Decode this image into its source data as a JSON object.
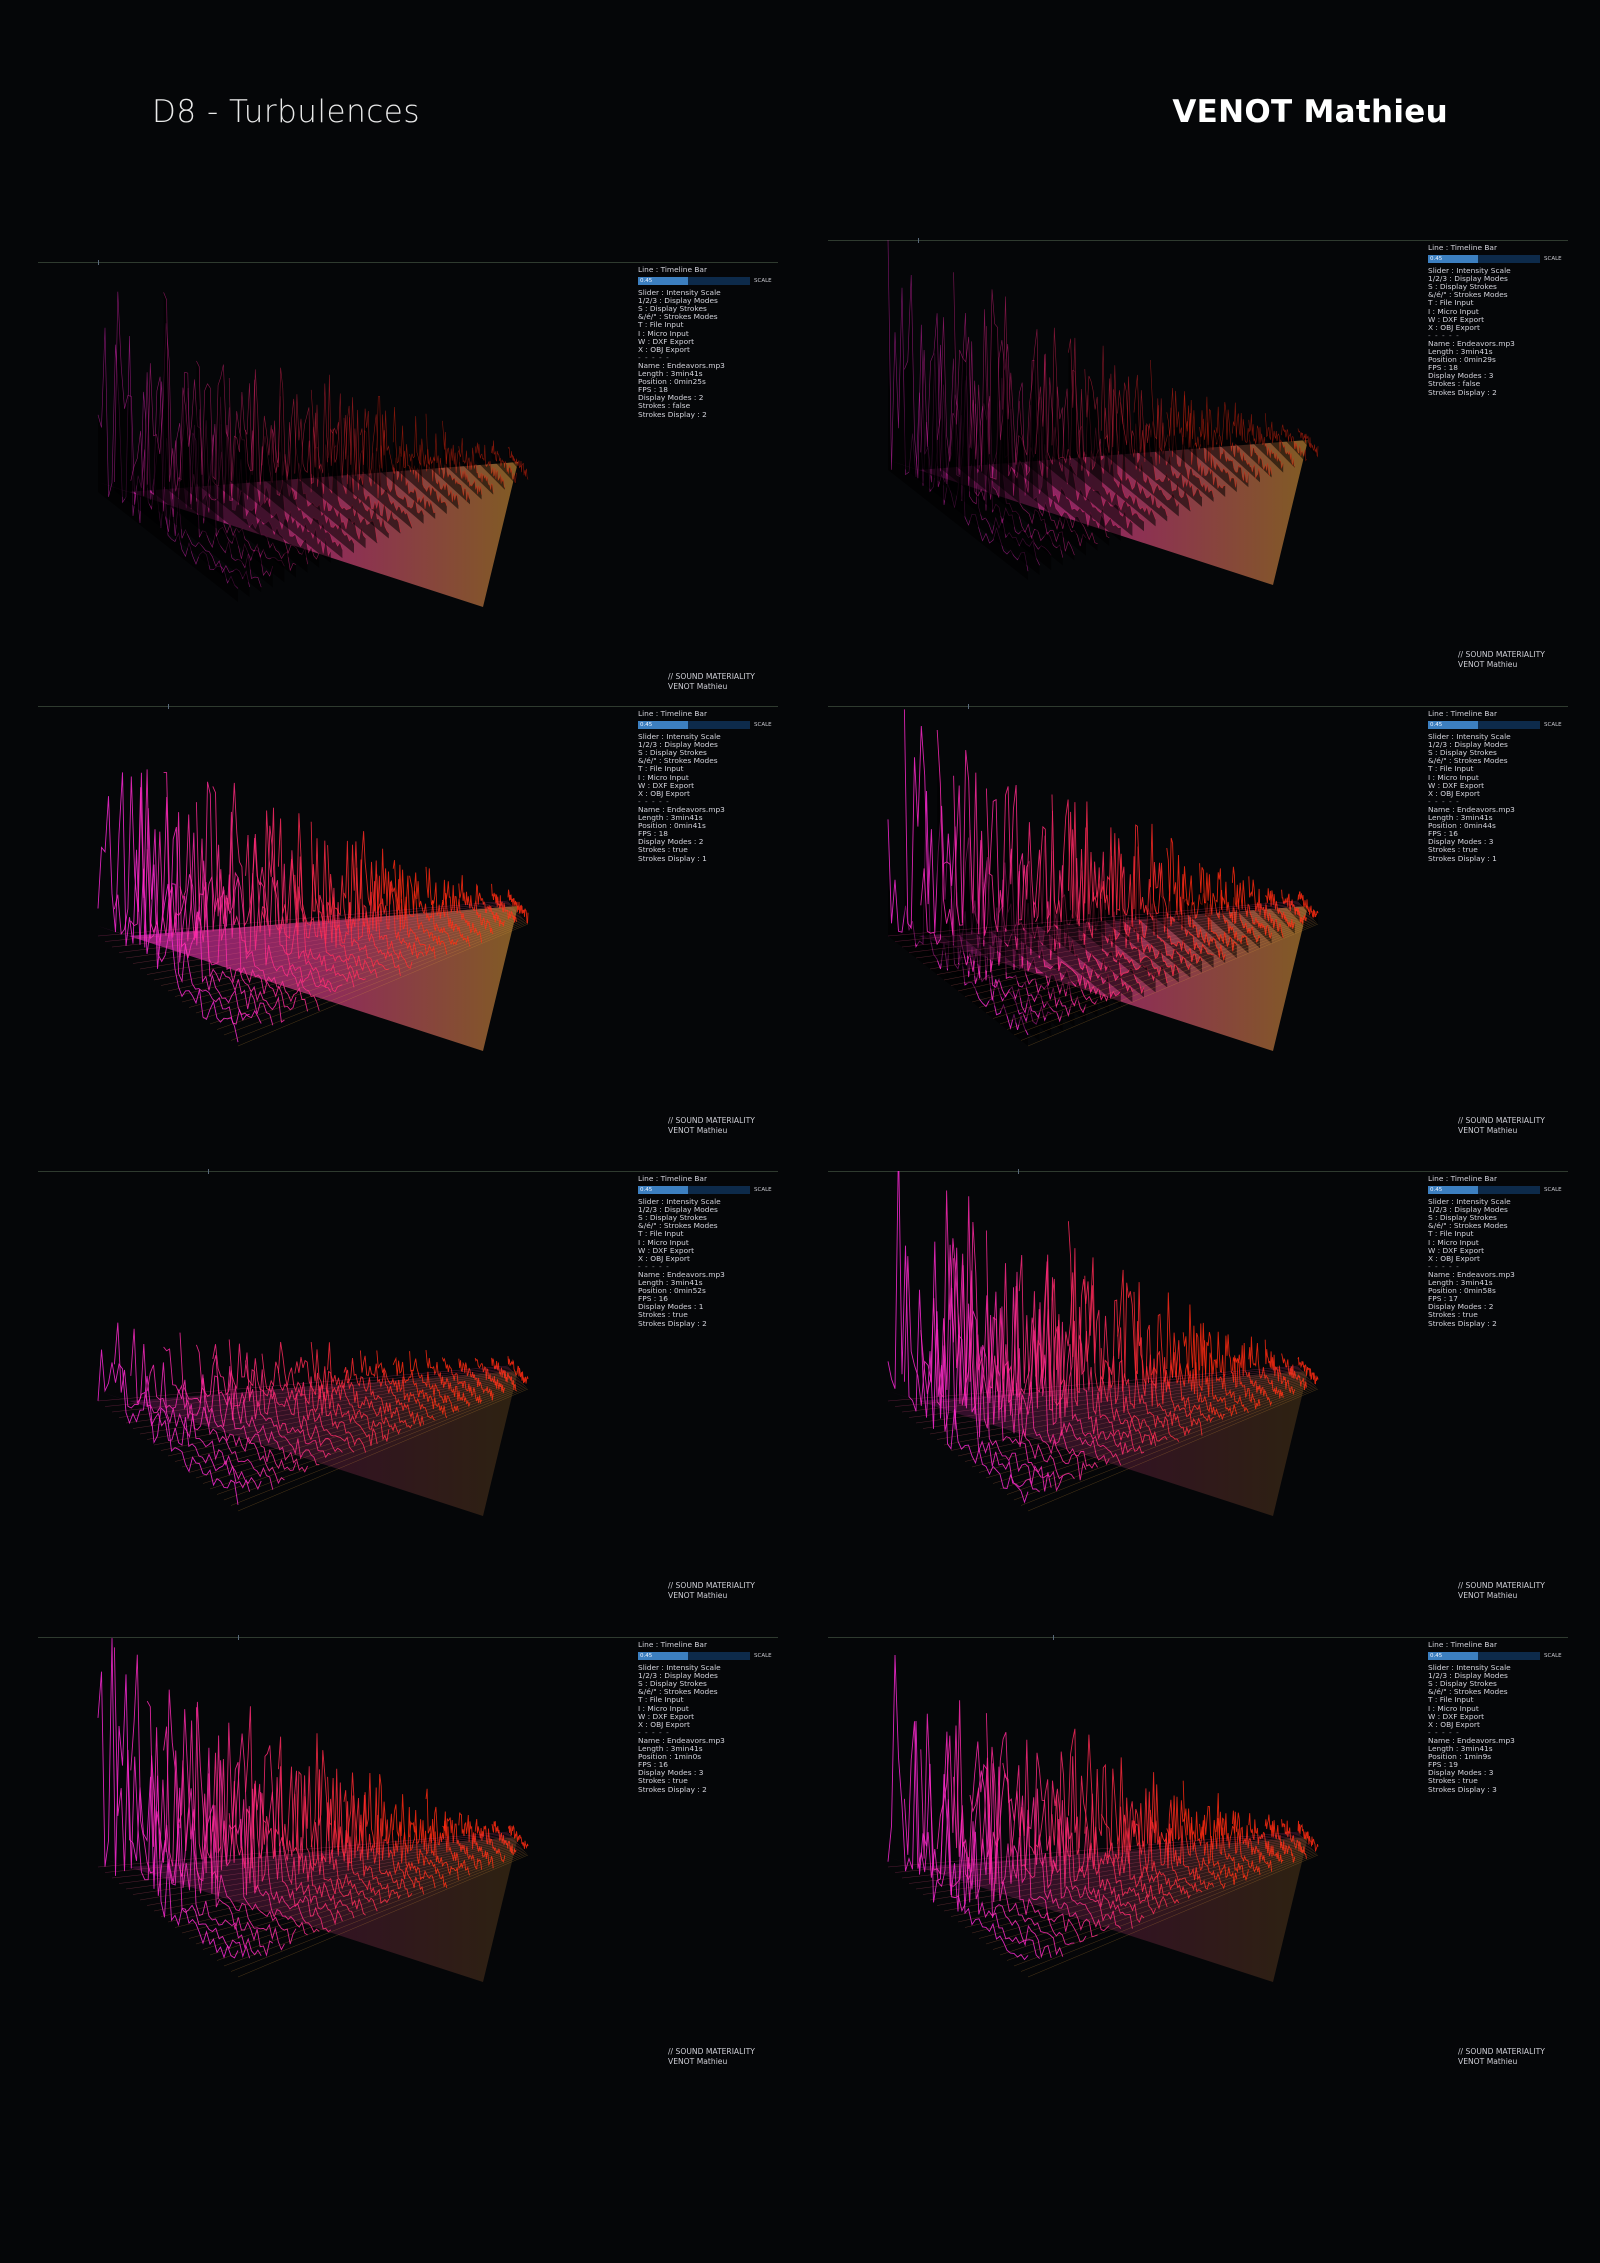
{
  "header": {
    "title": "D8 - Turbulences",
    "author": "VENOT Mathieu"
  },
  "colors": {
    "background": "#050608",
    "magenta": "#ff2ad8",
    "pink": "#ff4a9a",
    "red": "#ff2a10",
    "gold": "#e6a23a",
    "hud_bar": "#0d2a4a",
    "hud_fill": "#3c7fc0"
  },
  "panels": [
    {
      "hud": {
        "timeline_label": "Line : Timeline Bar",
        "slider_value": "0.45",
        "slider_fraction": 0.45,
        "slider_end": "SCALE",
        "controls": [
          "Slider : Intensity Scale",
          "1/2/3 : Display Modes",
          "S : Display Strokes",
          "&/é/\" : Strokes Modes",
          "T : File Input",
          "I : Micro Input",
          "W : DXF Export",
          "X : OBJ Export"
        ],
        "separator": "- - - - -",
        "info": [
          "Name : Endeavors.mp3",
          "Length : 3min41s",
          "Position : 0min25s",
          "FPS : 18",
          "Display Modes : 2",
          "Strokes : false",
          "Strokes Display : 2"
        ]
      },
      "credit": [
        "// SOUND MATERIALITY",
        "VENOT Mathieu"
      ]
    },
    {
      "hud": {
        "timeline_label": "Line : Timeline Bar",
        "slider_value": "0.45",
        "slider_fraction": 0.45,
        "slider_end": "SCALE",
        "controls": [
          "Slider : Intensity Scale",
          "1/2/3 : Display Modes",
          "S : Display Strokes",
          "&/é/\" : Strokes Modes",
          "T : File Input",
          "I : Micro Input",
          "W : DXF Export",
          "X : OBJ Export"
        ],
        "separator": "- - - - -",
        "info": [
          "Name : Endeavors.mp3",
          "Length : 3min41s",
          "Position : 0min29s",
          "FPS : 18",
          "Display Modes : 3",
          "Strokes : false",
          "Strokes Display : 2"
        ]
      },
      "credit": [
        "// SOUND MATERIALITY",
        "VENOT Mathieu"
      ]
    },
    {
      "hud": {
        "timeline_label": "Line : Timeline Bar",
        "slider_value": "0.45",
        "slider_fraction": 0.45,
        "slider_end": "SCALE",
        "controls": [
          "Slider : Intensity Scale",
          "1/2/3 : Display Modes",
          "S : Display Strokes",
          "&/é/\" : Strokes Modes",
          "T : File Input",
          "I : Micro Input",
          "W : DXF Export",
          "X : OBJ Export"
        ],
        "separator": "- - - - -",
        "info": [
          "Name : Endeavors.mp3",
          "Length : 3min41s",
          "Position : 0min41s",
          "FPS : 18",
          "Display Modes : 2",
          "Strokes : true",
          "Strokes Display : 1"
        ]
      },
      "credit": [
        "// SOUND MATERIALITY",
        "VENOT Mathieu"
      ]
    },
    {
      "hud": {
        "timeline_label": "Line : Timeline Bar",
        "slider_value": "0.45",
        "slider_fraction": 0.45,
        "slider_end": "SCALE",
        "controls": [
          "Slider : Intensity Scale",
          "1/2/3 : Display Modes",
          "S : Display Strokes",
          "&/é/\" : Strokes Modes",
          "T : File Input",
          "I : Micro Input",
          "W : DXF Export",
          "X : OBJ Export"
        ],
        "separator": "- - - - -",
        "info": [
          "Name : Endeavors.mp3",
          "Length : 3min41s",
          "Position : 0min44s",
          "FPS : 16",
          "Display Modes : 3",
          "Strokes : true",
          "Strokes Display : 1"
        ]
      },
      "credit": [
        "// SOUND MATERIALITY",
        "VENOT Mathieu"
      ]
    },
    {
      "hud": {
        "timeline_label": "Line : Timeline Bar",
        "slider_value": "0.45",
        "slider_fraction": 0.45,
        "slider_end": "SCALE",
        "controls": [
          "Slider : Intensity Scale",
          "1/2/3 : Display Modes",
          "S : Display Strokes",
          "&/é/\" : Strokes Modes",
          "T : File Input",
          "I : Micro Input",
          "W : DXF Export",
          "X : OBJ Export"
        ],
        "separator": "- - - - -",
        "info": [
          "Name : Endeavors.mp3",
          "Length : 3min41s",
          "Position : 0min52s",
          "FPS : 16",
          "Display Modes : 1",
          "Strokes : true",
          "Strokes Display : 2"
        ]
      },
      "credit": [
        "// SOUND MATERIALITY",
        "VENOT Mathieu"
      ]
    },
    {
      "hud": {
        "timeline_label": "Line : Timeline Bar",
        "slider_value": "0.45",
        "slider_fraction": 0.45,
        "slider_end": "SCALE",
        "controls": [
          "Slider : Intensity Scale",
          "1/2/3 : Display Modes",
          "S : Display Strokes",
          "&/é/\" : Strokes Modes",
          "T : File Input",
          "I : Micro Input",
          "W : DXF Export",
          "X : OBJ Export"
        ],
        "separator": "- - - - -",
        "info": [
          "Name : Endeavors.mp3",
          "Length : 3min41s",
          "Position : 0min58s",
          "FPS : 17",
          "Display Modes : 2",
          "Strokes : true",
          "Strokes Display : 2"
        ]
      },
      "credit": [
        "// SOUND MATERIALITY",
        "VENOT Mathieu"
      ]
    },
    {
      "hud": {
        "timeline_label": "Line : Timeline Bar",
        "slider_value": "0.45",
        "slider_fraction": 0.45,
        "slider_end": "SCALE",
        "controls": [
          "Slider : Intensity Scale",
          "1/2/3 : Display Modes",
          "S : Display Strokes",
          "&/é/\" : Strokes Modes",
          "T : File Input",
          "I : Micro Input",
          "W : DXF Export",
          "X : OBJ Export"
        ],
        "separator": "- - - - -",
        "info": [
          "Name : Endeavors.mp3",
          "Length : 3min41s",
          "Position : 1min0s",
          "FPS : 16",
          "Display Modes : 3",
          "Strokes : true",
          "Strokes Display : 2"
        ]
      },
      "credit": [
        "// SOUND MATERIALITY",
        "VENOT Mathieu"
      ]
    },
    {
      "hud": {
        "timeline_label": "Line : Timeline Bar",
        "slider_value": "0.45",
        "slider_fraction": 0.45,
        "slider_end": "SCALE",
        "controls": [
          "Slider : Intensity Scale",
          "1/2/3 : Display Modes",
          "S : Display Strokes",
          "&/é/\" : Strokes Modes",
          "T : File Input",
          "I : Micro Input",
          "W : DXF Export",
          "X : OBJ Export"
        ],
        "separator": "- - - - -",
        "info": [
          "Name : Endeavors.mp3",
          "Length : 3min41s",
          "Position : 1min9s",
          "FPS : 19",
          "Display Modes : 3",
          "Strokes : true",
          "Strokes Display : 3"
        ]
      },
      "credit": [
        "// SOUND MATERIALITY",
        "VENOT Mathieu"
      ]
    }
  ]
}
